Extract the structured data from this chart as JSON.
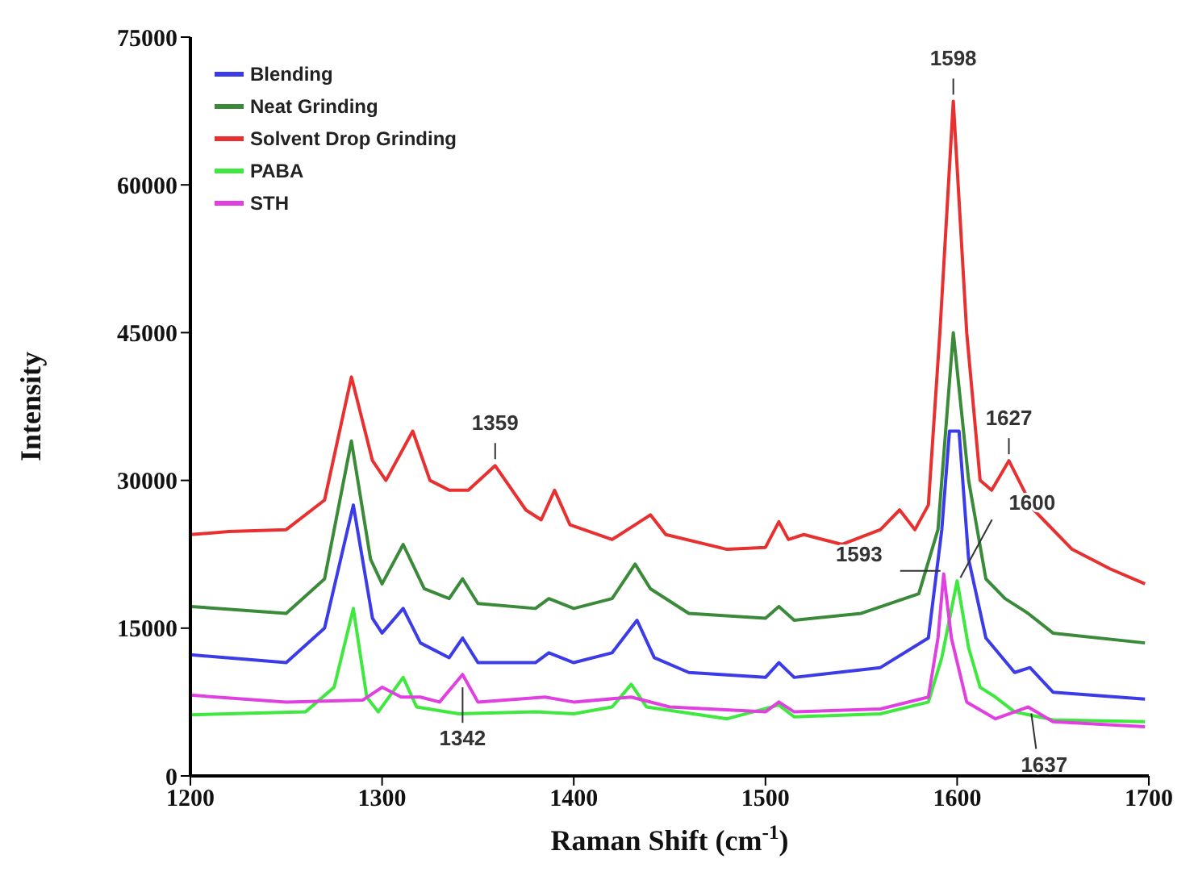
{
  "chart_data": {
    "type": "line",
    "xlabel": "Raman Shift (cm$^{-1}$)",
    "ylabel": "Intensity",
    "xlim": [
      1200,
      1700
    ],
    "xticks": [
      1200,
      1300,
      1400,
      1500,
      1600,
      1700
    ],
    "ylim": [
      0,
      75000
    ],
    "yticks": [
      0,
      15000,
      30000,
      45000,
      60000,
      75000
    ],
    "grid": false,
    "legend": "top left",
    "marker": "none",
    "line_style": "solid",
    "series": [
      {
        "name": "Blending",
        "color": "#3b3be8",
        "x": [
          1200,
          1250,
          1270,
          1285,
          1295,
          1300,
          1311,
          1320,
          1335,
          1342,
          1350,
          1380,
          1387,
          1400,
          1420,
          1433,
          1442,
          1460,
          1500,
          1507,
          1515,
          1560,
          1585,
          1592,
          1596,
          1601,
          1606,
          1615,
          1630,
          1638,
          1650,
          1698
        ],
        "values": [
          12300,
          11500,
          15000,
          27500,
          16000,
          14500,
          17000,
          13500,
          12000,
          14000,
          11500,
          11500,
          12500,
          11500,
          12500,
          15800,
          12000,
          10500,
          10000,
          11500,
          10000,
          11000,
          14000,
          25000,
          35000,
          35000,
          22000,
          14000,
          10500,
          11000,
          8500,
          7800
        ]
      },
      {
        "name": "Neat Grinding",
        "color": "#3a8a3a",
        "x": [
          1200,
          1250,
          1270,
          1284,
          1294,
          1300,
          1311,
          1322,
          1335,
          1342,
          1350,
          1380,
          1387,
          1400,
          1420,
          1432,
          1440,
          1460,
          1500,
          1507,
          1515,
          1550,
          1580,
          1590,
          1598,
          1606,
          1615,
          1625,
          1637,
          1650,
          1698
        ],
        "values": [
          17200,
          16500,
          20000,
          34000,
          22000,
          19500,
          23500,
          19000,
          18000,
          20000,
          17500,
          17000,
          18000,
          17000,
          18000,
          21500,
          19000,
          16500,
          16000,
          17200,
          15800,
          16500,
          18500,
          25000,
          45000,
          30000,
          20000,
          18000,
          16500,
          14500,
          13500
        ]
      },
      {
        "name": "Solvent Drop Grinding",
        "color": "#e83030",
        "x": [
          1200,
          1220,
          1250,
          1270,
          1284,
          1295,
          1302,
          1316,
          1325,
          1335,
          1345,
          1359,
          1375,
          1383,
          1390,
          1398,
          1420,
          1440,
          1448,
          1480,
          1500,
          1507,
          1512,
          1520,
          1540,
          1560,
          1570,
          1578,
          1585,
          1591,
          1598,
          1605,
          1612,
          1618,
          1627,
          1640,
          1660,
          1680,
          1698
        ],
        "values": [
          24500,
          24800,
          25000,
          28000,
          40500,
          32000,
          30000,
          35000,
          30000,
          29000,
          29000,
          31500,
          27000,
          26000,
          29000,
          25500,
          24000,
          26500,
          24500,
          23000,
          23200,
          25800,
          24000,
          24500,
          23500,
          25000,
          27000,
          25000,
          27500,
          45000,
          68500,
          45000,
          30000,
          29000,
          32000,
          27000,
          23000,
          21000,
          19500
        ]
      },
      {
        "name": "PABA",
        "color": "#3ee83e",
        "x": [
          1200,
          1260,
          1275,
          1285,
          1292,
          1298,
          1311,
          1318,
          1340,
          1380,
          1400,
          1420,
          1430,
          1438,
          1480,
          1507,
          1515,
          1560,
          1585,
          1592,
          1600,
          1606,
          1612,
          1620,
          1630,
          1650,
          1698
        ],
        "values": [
          6200,
          6500,
          9000,
          17000,
          8000,
          6500,
          10000,
          7000,
          6300,
          6500,
          6300,
          7000,
          9300,
          7000,
          5800,
          7200,
          6000,
          6300,
          7500,
          12000,
          19800,
          13000,
          9000,
          8000,
          6500,
          5700,
          5500
        ]
      },
      {
        "name": "STH",
        "color": "#e040e0",
        "x": [
          1200,
          1250,
          1290,
          1300,
          1310,
          1320,
          1330,
          1342,
          1350,
          1385,
          1400,
          1430,
          1450,
          1500,
          1507,
          1515,
          1560,
          1585,
          1590,
          1593,
          1597,
          1605,
          1620,
          1637,
          1650,
          1698
        ],
        "values": [
          8200,
          7500,
          7700,
          9000,
          8000,
          8000,
          7500,
          10300,
          7500,
          8000,
          7500,
          8000,
          7000,
          6500,
          7500,
          6500,
          6800,
          8000,
          14000,
          20500,
          14000,
          7500,
          5800,
          7000,
          5500,
          5000
        ]
      }
    ],
    "annotations": [
      {
        "text": "1598",
        "x": 1598,
        "y": 68500
      },
      {
        "text": "1359",
        "x": 1359,
        "y": 31500
      },
      {
        "text": "1627",
        "x": 1627,
        "y": 32000
      },
      {
        "text": "1593",
        "x": 1593,
        "y": 20500
      },
      {
        "text": "1600",
        "x": 1600,
        "y": 19800
      },
      {
        "text": "1342",
        "x": 1342,
        "y": 10300
      },
      {
        "text": "1637",
        "x": 1637,
        "y": 7000
      }
    ]
  }
}
